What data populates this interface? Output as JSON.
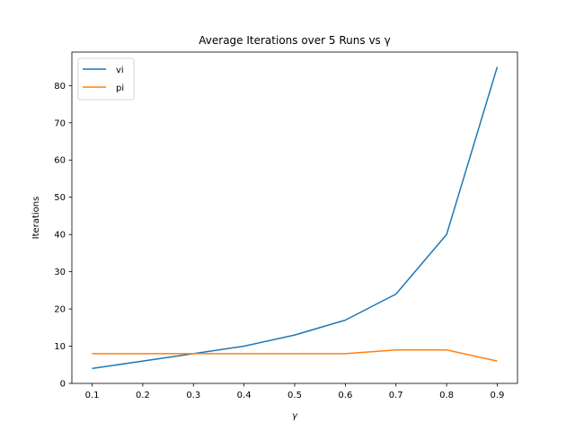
{
  "chart_data": {
    "type": "line",
    "title": "Average Iterations over 5 Runs vs γ",
    "xlabel": "γ",
    "ylabel": "Iterations",
    "x": [
      0.1,
      0.2,
      0.3,
      0.4,
      0.5,
      0.6,
      0.7,
      0.8,
      0.9
    ],
    "x_tick_labels": [
      "0.1",
      "0.2",
      "0.3",
      "0.4",
      "0.5",
      "0.6",
      "0.7",
      "0.8",
      "0.9"
    ],
    "y_ticks": [
      0,
      10,
      20,
      30,
      40,
      50,
      60,
      70,
      80
    ],
    "y_tick_labels": [
      "0",
      "10",
      "20",
      "30",
      "40",
      "50",
      "60",
      "70",
      "80"
    ],
    "xlim": [
      0.06,
      0.94
    ],
    "ylim": [
      0,
      89
    ],
    "grid": false,
    "legend_position": "top-left",
    "series": [
      {
        "name": "vi",
        "color": "#1f77b4",
        "values": [
          4,
          6,
          8,
          10,
          13,
          17,
          24,
          40,
          85
        ]
      },
      {
        "name": "pi",
        "color": "#ff7f0e",
        "values": [
          8,
          8,
          8,
          8,
          8,
          8,
          9,
          9,
          6
        ]
      }
    ]
  }
}
